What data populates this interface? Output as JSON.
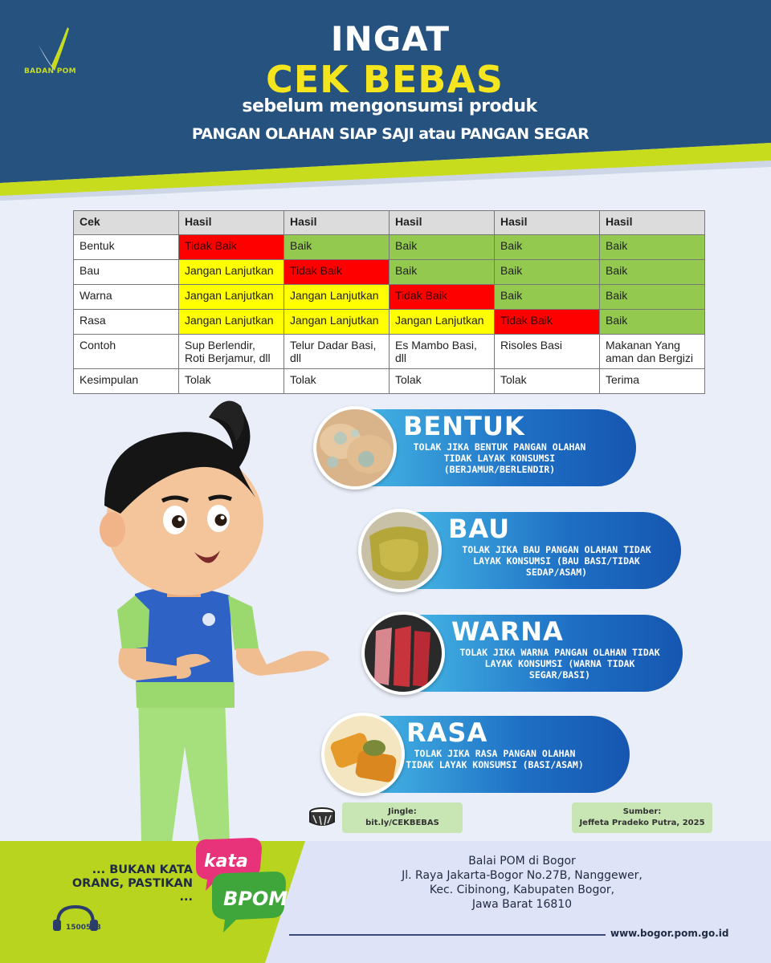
{
  "header": {
    "logo_text": "BADAN POM",
    "title_line1": "INGAT",
    "title_line2": "CEK BEBAS",
    "subtitle1": "sebelum mengonsumsi produk",
    "subtitle2": "PANGAN OLAHAN SIAP SAJI atau PANGAN SEGAR",
    "colors": {
      "navy": "#25527f",
      "lime": "#c8dc1e",
      "yellow": "#f5e51e"
    }
  },
  "table": {
    "headers": [
      "Cek",
      "Hasil",
      "Hasil",
      "Hasil",
      "Hasil",
      "Hasil"
    ],
    "rows": [
      {
        "label": "Bentuk",
        "cells": [
          "Tidak Baik",
          "Baik",
          "Baik",
          "Baik",
          "Baik"
        ]
      },
      {
        "label": "Bau",
        "cells": [
          "Jangan Lanjutkan",
          "Tidak Baik",
          "Baik",
          "Baik",
          "Baik"
        ]
      },
      {
        "label": "Warna",
        "cells": [
          "Jangan Lanjutkan",
          "Jangan Lanjutkan",
          "Tidak Baik",
          "Baik",
          "Baik"
        ]
      },
      {
        "label": "Rasa",
        "cells": [
          "Jangan Lanjutkan",
          "Jangan Lanjutkan",
          "Jangan Lanjutkan",
          "Tidak Baik",
          "Baik"
        ]
      },
      {
        "label": "Contoh",
        "cells": [
          "Sup Berlendir, Roti Berjamur, dll",
          "Telur Dadar Basi, dll",
          "Es Mambo Basi, dll",
          "Risoles Basi",
          "Makanan Yang aman dan Bergizi"
        ]
      },
      {
        "label": "Kesimpulan",
        "cells": [
          "Tolak",
          "Tolak",
          "Tolak",
          "Tolak",
          "Terima"
        ]
      }
    ],
    "colors": {
      "red": "#ff0000",
      "yellow": "#ffff00",
      "green": "#93c94f"
    }
  },
  "cards": [
    {
      "title": "BENTUK",
      "desc": "TOLAK JIKA BENTUK PANGAN OLAHAN TIDAK LAYAK KONSUMSI (BERJAMUR/BERLENDIR)",
      "icon": "moldy-bread-icon"
    },
    {
      "title": "BAU",
      "desc": "TOLAK JIKA BAU PANGAN OLAHAN TIDAK LAYAK KONSUMSI (BAU BASI/TIDAK SEDAP/ASAM)",
      "icon": "spoiled-omelette-icon"
    },
    {
      "title": "WARNA",
      "desc": "TOLAK JIKA WARNA PANGAN OLAHAN TIDAK LAYAK KONSUMSI (WARNA TIDAK SEGAR/BASI)",
      "icon": "ice-pop-icon"
    },
    {
      "title": "RASA",
      "desc": "TOLAK JIKA RASA PANGAN OLAHAN TIDAK LAYAK KONSUMSI (BASI/ASAM)",
      "icon": "risoles-icon"
    }
  ],
  "jingle": {
    "label": "Jingle:",
    "link": "bit.ly/CEKBEBAS"
  },
  "source": {
    "label": "Sumber:",
    "author": "Jeffeta Pradeko Putra, 2025"
  },
  "footer": {
    "tagline": "... BUKAN KATA ORANG, PASTIKAN ...",
    "kata": "kata",
    "bpom": "BPOM",
    "hotline": "1500533",
    "address_lines": [
      "Balai POM di Bogor",
      "Jl. Raya Jakarta-Bogor No.27B, Nanggewer,",
      "Kec. Cibinong, Kabupaten Bogor,",
      "Jawa Barat 16810"
    ],
    "website": "www.bogor.pom.go.id"
  }
}
